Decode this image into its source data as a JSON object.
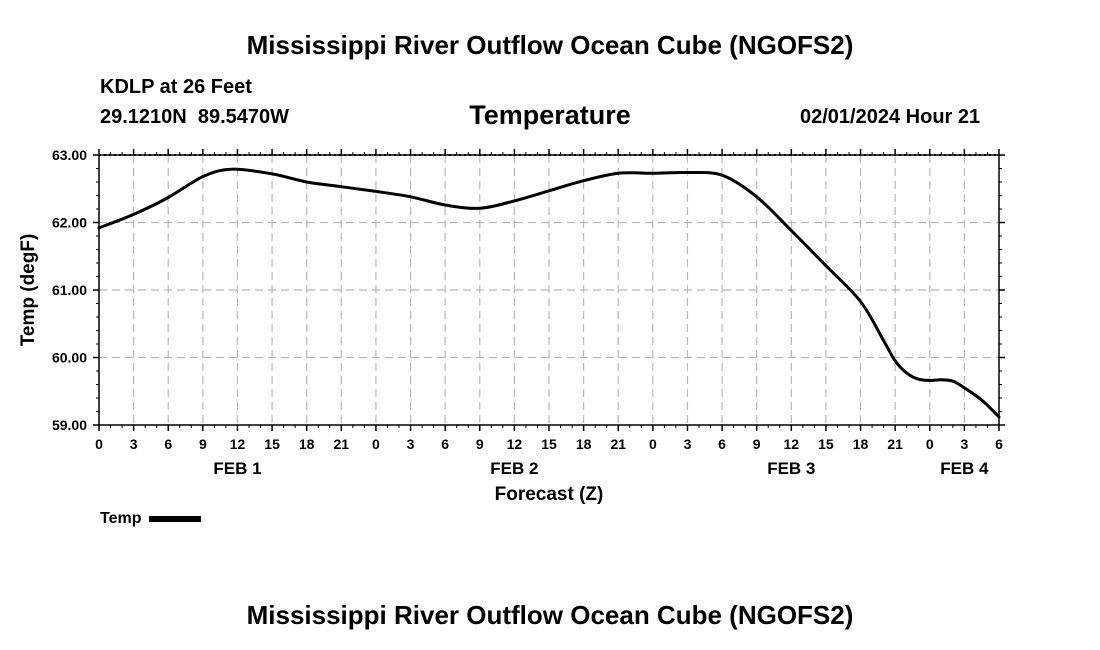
{
  "chart_data": {
    "type": "line",
    "title": "Mississippi River Outflow Ocean Cube (NGOFS2)",
    "subtitle": "Temperature",
    "station": "KDLP at 26 Feet",
    "coords": "29.1210N  89.5470W",
    "datetime": "02/01/2024 Hour 21",
    "xlabel": "Forecast (Z)",
    "ylabel": "Temp (degF)",
    "ylim": [
      59.0,
      63.0
    ],
    "yticks": [
      "59.00",
      "60.00",
      "61.00",
      "62.00",
      "63.00"
    ],
    "xlim": [
      0,
      78
    ],
    "xtick_labels": [
      "0",
      "3",
      "6",
      "9",
      "12",
      "15",
      "18",
      "21",
      "0",
      "3",
      "6",
      "9",
      "12",
      "15",
      "18",
      "21",
      "0",
      "3",
      "6",
      "9",
      "12",
      "15",
      "18",
      "21",
      "0",
      "3",
      "6"
    ],
    "day_labels": [
      {
        "label": "FEB 1",
        "hour": 12
      },
      {
        "label": "FEB 2",
        "hour": 36
      },
      {
        "label": "FEB 3",
        "hour": 60
      },
      {
        "label": "FEB 4",
        "hour": 75
      }
    ],
    "grid": true,
    "series": [
      {
        "name": "Temp",
        "color": "#000000",
        "x": [
          0,
          3,
          6,
          9,
          11.5,
          15,
          18,
          21,
          24,
          27,
          30,
          33,
          36,
          39,
          42,
          45,
          48,
          51,
          54,
          57,
          60,
          63,
          66,
          68,
          69,
          70,
          71,
          72,
          73,
          74,
          75,
          76.5,
          78
        ],
        "values": [
          61.92,
          62.12,
          62.37,
          62.68,
          62.79,
          62.72,
          62.6,
          62.53,
          62.46,
          62.38,
          62.26,
          62.21,
          62.32,
          62.47,
          62.62,
          62.73,
          62.73,
          62.74,
          62.7,
          62.38,
          61.88,
          61.36,
          60.83,
          60.25,
          59.95,
          59.77,
          59.68,
          59.66,
          59.67,
          59.65,
          59.55,
          59.37,
          59.12
        ]
      }
    ],
    "legend": {
      "label": "Temp",
      "placement": "bottom-left"
    },
    "footer_title": "Mississippi River Outflow Ocean Cube (NGOFS2)"
  }
}
